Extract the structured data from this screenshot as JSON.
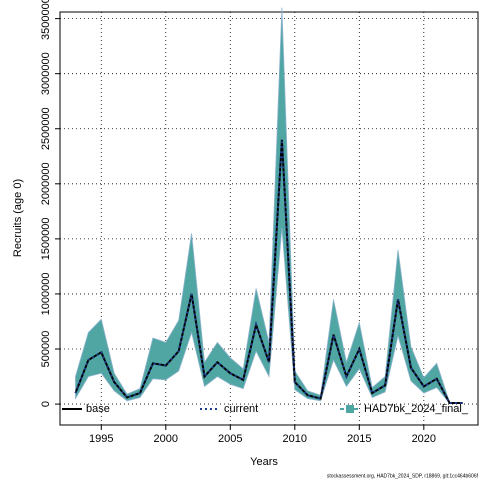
{
  "chart_data": {
    "type": "line",
    "xlabel": "Years",
    "ylabel": "Recruits (age 0)",
    "footnote": "stockassessment.org, HAD7bk_2024_SDP, r18869, git:1cc464b606f",
    "x": [
      1993,
      1994,
      1995,
      1996,
      1997,
      1998,
      1999,
      2000,
      2001,
      2002,
      2003,
      2004,
      2005,
      2006,
      2007,
      2008,
      2009,
      2010,
      2011,
      2012,
      2013,
      2014,
      2015,
      2016,
      2017,
      2018,
      2019,
      2020,
      2021,
      2022,
      2023
    ],
    "series": [
      {
        "name": "base",
        "color": "#000000",
        "style": "solid",
        "values": [
          100000,
          400000,
          470000,
          200000,
          60000,
          100000,
          370000,
          350000,
          480000,
          1000000,
          250000,
          380000,
          280000,
          220000,
          720000,
          380000,
          2400000,
          200000,
          80000,
          50000,
          630000,
          250000,
          500000,
          100000,
          170000,
          950000,
          330000,
          160000,
          230000,
          10000,
          10000
        ]
      },
      {
        "name": "current",
        "color": "#1f3a8a",
        "style": "dotted",
        "values": [
          100000,
          400000,
          470000,
          200000,
          60000,
          100000,
          370000,
          350000,
          480000,
          1000000,
          250000,
          380000,
          280000,
          220000,
          720000,
          380000,
          2400000,
          200000,
          80000,
          50000,
          630000,
          250000,
          500000,
          100000,
          170000,
          950000,
          330000,
          160000,
          230000,
          10000,
          10000
        ]
      }
    ],
    "band": {
      "name": "HAD7bk_2024_final_",
      "color": "#4fa6a3",
      "lower": [
        50000,
        250000,
        280000,
        120000,
        30000,
        60000,
        230000,
        220000,
        300000,
        650000,
        160000,
        250000,
        180000,
        140000,
        480000,
        250000,
        1600000,
        130000,
        50000,
        30000,
        400000,
        160000,
        320000,
        60000,
        110000,
        620000,
        210000,
        100000,
        150000,
        5000,
        5000
      ],
      "upper": [
        250000,
        650000,
        770000,
        280000,
        90000,
        140000,
        600000,
        560000,
        760000,
        1550000,
        380000,
        560000,
        420000,
        320000,
        1050000,
        560000,
        3600000,
        300000,
        120000,
        80000,
        950000,
        380000,
        740000,
        150000,
        250000,
        1400000,
        520000,
        240000,
        370000,
        15000,
        15000
      ]
    },
    "xlim": [
      1991.8,
      2024.2
    ],
    "xticks": [
      1995,
      2000,
      2005,
      2010,
      2015,
      2020
    ],
    "ylim": [
      -190000,
      3560000
    ],
    "yticks": [
      0,
      500000,
      1000000,
      1500000,
      2000000,
      2500000,
      3000000,
      3500000
    ],
    "grid": true
  }
}
